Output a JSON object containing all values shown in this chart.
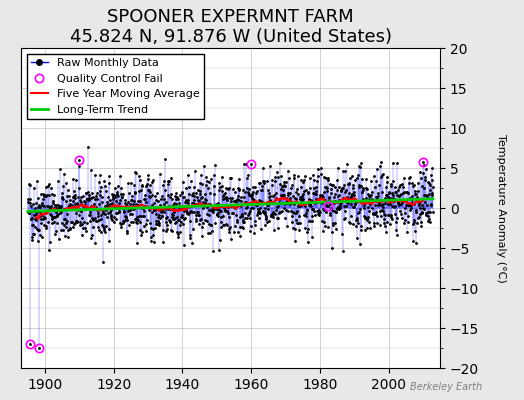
{
  "title": "SPOONER EXPERMNT FARM",
  "subtitle": "45.824 N, 91.876 W (United States)",
  "ylabel": "Temperature Anomaly (°C)",
  "ylim": [
    -20,
    20
  ],
  "yticks": [
    -20,
    -15,
    -10,
    -5,
    0,
    5,
    10,
    15,
    20
  ],
  "xlim_start": 1893,
  "xlim_end": 2015,
  "xticks": [
    1900,
    1920,
    1940,
    1960,
    1980,
    2000
  ],
  "raw_color": "#0000FF",
  "raw_marker_color": "#000000",
  "ma_color": "#FF0000",
  "trend_color": "#00CC00",
  "qc_color": "#FF00FF",
  "bg_color": "#E8E8E8",
  "plot_bg": "#FFFFFF",
  "grid_color": "#C0C0C0",
  "title_fontsize": 13,
  "subtitle_fontsize": 10,
  "legend_fontsize": 8,
  "watermark": "Berkeley Earth",
  "start_year": 1895,
  "end_year": 2013,
  "qc_indices": [
    8,
    40,
    180,
    780,
    1050,
    1380
  ],
  "qc_vals": [
    -17.0,
    -17.5,
    6.0,
    5.5,
    0.2,
    5.8
  ]
}
